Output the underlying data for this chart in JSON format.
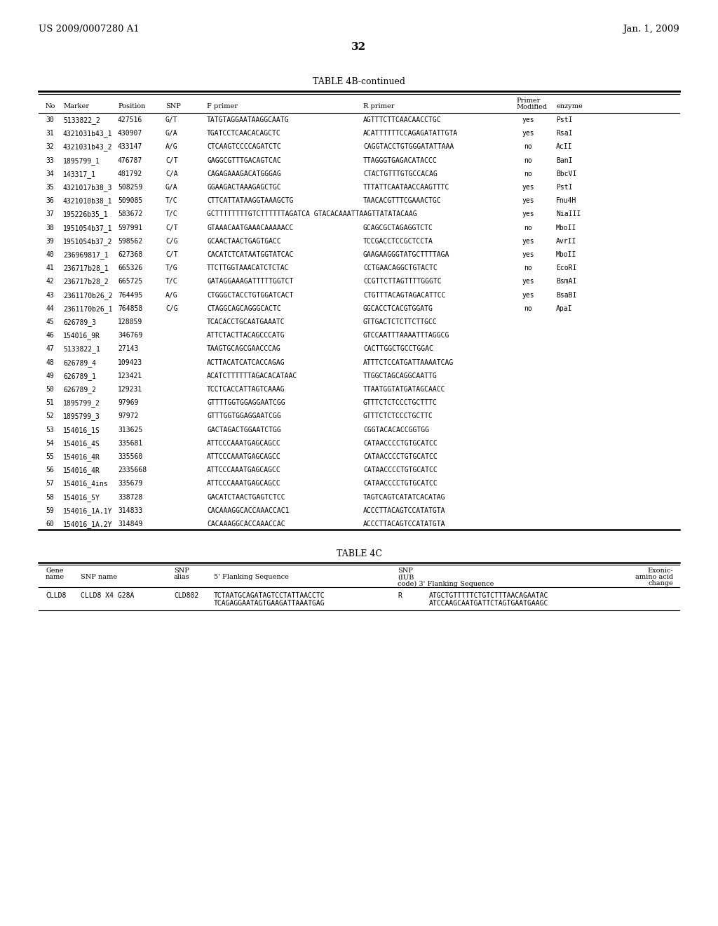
{
  "header_left": "US 2009/0007280 A1",
  "header_right": "Jan. 1, 2009",
  "page_number": "32",
  "table4b_title": "TABLE 4B-continued",
  "table4b_rows": [
    [
      "30",
      "5133822_2",
      "427516",
      "G/T",
      "TATGTAGGAATAAGGCAATG",
      "AGTTTCTTCAACAACCTGC",
      "yes",
      "PstI"
    ],
    [
      "31",
      "4321031b43_1",
      "430907",
      "G/A",
      "TGATCCTCAACACAGCTC",
      "ACATTTTTTCCAGAGATATTGTA",
      "yes",
      "RsaI"
    ],
    [
      "32",
      "4321031b43_2",
      "433147",
      "A/G",
      "CTCAAGTCCCCAGATCTC",
      "CAGGTACCTGTGGGATATTAAA",
      "no",
      "AcII"
    ],
    [
      "33",
      "1895799_1",
      "476787",
      "C/T",
      "GAGGCGTTTGACAGTCAC",
      "TTAGGGTGAGACATACCC",
      "no",
      "BanI"
    ],
    [
      "34",
      "143317_1",
      "481792",
      "C/A",
      "CAGAGAAAGACATGGGAG",
      "CTACTGTTTGTGCCACAG",
      "no",
      "BbcVI"
    ],
    [
      "35",
      "4321017b38_3",
      "508259",
      "G/A",
      "GGAAGACTAAAGAGCTGC",
      "TTTATTCAATAACCAAGTTTC",
      "yes",
      "PstI"
    ],
    [
      "36",
      "4321010b38_1",
      "509085",
      "T/C",
      "CTTCATTATAAGGTAAAGCTG",
      "TAACACGTTTCGAAACTGC",
      "yes",
      "Fnu4H"
    ],
    [
      "37",
      "195226b35_1",
      "583672",
      "T/C",
      "GCTTTTTTTTGTCTTTTTTAGATCA GTACACAAATTAAGTTATATACAAG",
      "",
      "yes",
      "NiaIII"
    ],
    [
      "38",
      "1951054b37_1",
      "597991",
      "C/T",
      "GTAAACAATGAAACAAAAACC",
      "GCAGCGCTAGAGGTCTC",
      "no",
      "MboII"
    ],
    [
      "39",
      "1951054b37_2",
      "598562",
      "C/G",
      "GCAACTAACTGAGTGACC",
      "TCCGACCTCCGCTCCTA",
      "yes",
      "AvrII"
    ],
    [
      "40",
      "236969817_1",
      "627368",
      "C/T",
      "CACATCTCATAATGGTATCAC",
      "GAAGAAGGGTATGCTTTTAGА",
      "yes",
      "MboII"
    ],
    [
      "41",
      "236717b28_1",
      "665326",
      "T/G",
      "TTCTTGGTAAACATCTCTAC",
      "CCTGAACAGGCTGTACTC",
      "no",
      "EcoRI"
    ],
    [
      "42",
      "236717b28_2",
      "665725",
      "T/C",
      "GATAGGAAAGATTTTTGGTCT",
      "CCGTTCTTAGTTTTGGGTC",
      "yes",
      "BsmAI"
    ],
    [
      "43",
      "2361170b26_2",
      "764495",
      "A/G",
      "CTGGGCTACCTGTGGATCACT",
      "CTGTTTACAGTAGACATTCC",
      "yes",
      "BsaBI"
    ],
    [
      "44",
      "2361170b26_1",
      "764858",
      "C/G",
      "CTAGGCAGCAGGGCACTC",
      "GGCACCTCACGTGGATG",
      "no",
      "ApaI"
    ],
    [
      "45",
      "626789_3",
      "128859",
      "",
      "TCACACCTGCAATGAAATC",
      "GTTGACTCTCTTCTTGCC",
      "",
      ""
    ],
    [
      "46",
      "154016_9R",
      "346769",
      "",
      "ATTCTACTTACAGCCCATG",
      "GTCCAATTTAAAATTTAGGCG",
      "",
      ""
    ],
    [
      "47",
      "5133822_1",
      "27143",
      "",
      "TAAGTGCAGCGAACCCAG",
      "CACTTGGCTGCCTGGAC",
      "",
      ""
    ],
    [
      "48",
      "626789_4",
      "109423",
      "",
      "ACTTACATCATCACCAGAG",
      "ATTTCTCCATGATTAAAATCAG",
      "",
      ""
    ],
    [
      "49",
      "626789_1",
      "123421",
      "",
      "ACATCTTTTTTAGACACATAAC",
      "TTGGCTAGCAGGCAATTG",
      "",
      ""
    ],
    [
      "50",
      "626789_2",
      "129231",
      "",
      "TCCTCACCATTAGTCAAAG",
      "TTAATGGTATGATAGCAACC",
      "",
      ""
    ],
    [
      "51",
      "1895799_2",
      "97969",
      "",
      "GTTTTGGTGGAGGAATCGG",
      "GTTTCTCTCCCTGCTTTC",
      "",
      ""
    ],
    [
      "52",
      "1895799_3",
      "97972",
      "",
      "GTTTGGTGGAGGAATCGG",
      "GTTTCTCTCCCTGCTTC",
      "",
      ""
    ],
    [
      "53",
      "154016_1S",
      "313625",
      "",
      "GACTAGACTGGAATCTGG",
      "CGGTACACACCGGTGG",
      "",
      ""
    ],
    [
      "54",
      "154016_4S",
      "335681",
      "",
      "ATTCCCAAATGAGCAGCC",
      "CATAACCCCTGTGCATCC",
      "",
      ""
    ],
    [
      "55",
      "154016_4R",
      "335560",
      "",
      "ATTCCCAAATGAGCAGCC",
      "CATAACCCCTGTGCATCC",
      "",
      ""
    ],
    [
      "56",
      "154016_4R",
      "2335668",
      "",
      "ATTCCCAAATGAGCAGCC",
      "CATAACCCCTGTGCATCC",
      "",
      ""
    ],
    [
      "57",
      "154016_4ins",
      "335679",
      "",
      "ATTCCCAAATGAGCAGCC",
      "CATAACCCCTGTGCATCC",
      "",
      ""
    ],
    [
      "58",
      "154016_5Y",
      "338728",
      "",
      "GACATCTAACTGAGTCTCC",
      "TAGTCAGTCATATCACATAG",
      "",
      ""
    ],
    [
      "59",
      "154016_1A.1Y",
      "314833",
      "",
      "CACAAAGGCACCAAACCAC1",
      "ACCCTTACAGTCCATATGTA",
      "",
      ""
    ],
    [
      "60",
      "154016_1A.2Y",
      "314849",
      "",
      "CACAAAGGCACCAAACCAC",
      "ACCCTTACAGTCCATATGTA",
      "",
      ""
    ]
  ],
  "table4c_title": "TABLE 4C",
  "table4c_rows": [
    [
      "CLLD8",
      "CLLD8 X4 G28A",
      "CLD802",
      "TCTAATGCAGATAGTCCTATTAACCTC",
      "TCAGAGGAATAGTGAAGATTAAATGAG",
      "R",
      "ATGCTGTTTTTCTGTCTTTAACAGAATAC",
      "ATCCAAGCAATGATTCTAGTGAATGAAGC",
      ""
    ]
  ],
  "background_color": "#ffffff",
  "text_color": "#000000",
  "fs_header": 9.5,
  "fs_table": 7.0,
  "fs_title": 9.0,
  "fs_pagenum": 11.0
}
